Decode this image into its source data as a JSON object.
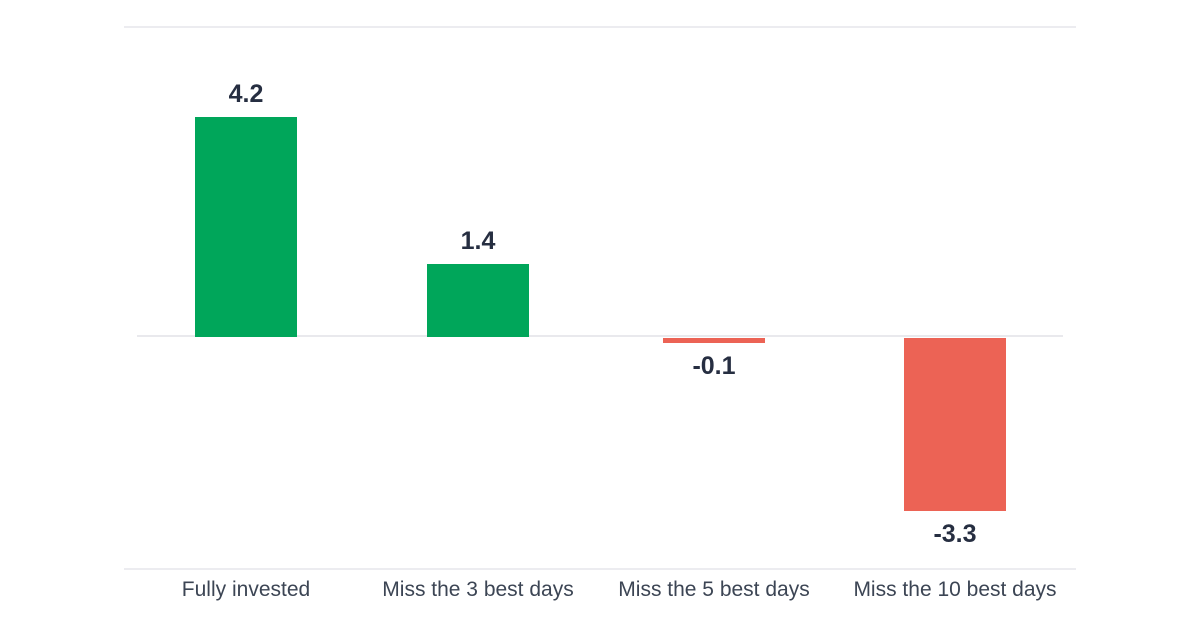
{
  "chart_data": {
    "type": "bar",
    "title": "",
    "xlabel": "",
    "ylabel": "",
    "categories": [
      "Fully invested",
      "Miss the 3 best days",
      "Miss the 5 best days",
      "Miss the 10 best days"
    ],
    "values": [
      4.2,
      1.4,
      -0.1,
      -3.3
    ],
    "value_labels": [
      "4.2",
      "1.4",
      "-0.1",
      "-3.3"
    ],
    "ylim": [
      -3.3,
      4.2
    ],
    "grid": false,
    "legend": "none",
    "colors": {
      "positive": "#00a65a",
      "negative": "#ec6355"
    },
    "text_colors": {
      "value_label": "#262e41",
      "category_label": "#3c4554"
    }
  }
}
